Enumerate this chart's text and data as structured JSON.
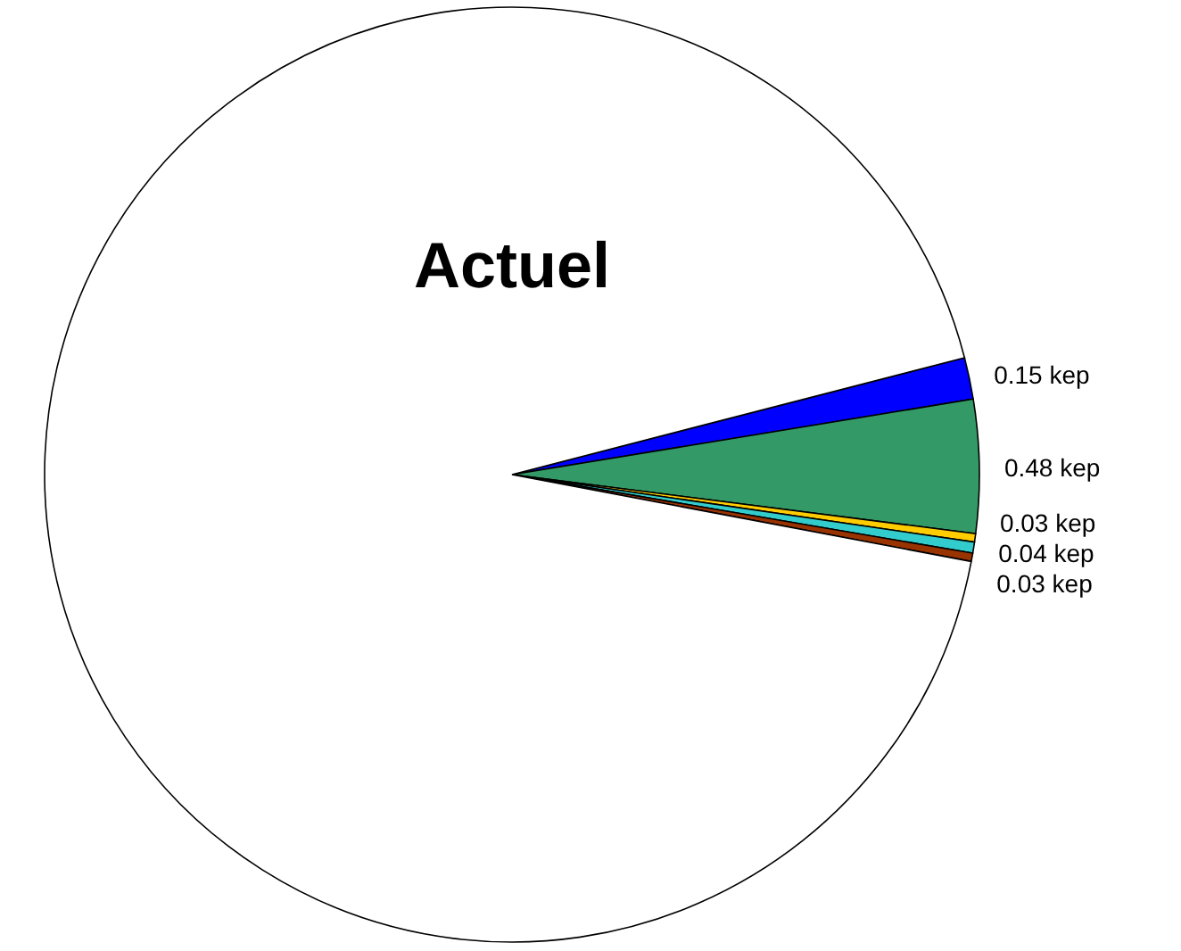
{
  "chart_data": {
    "type": "pie",
    "title": "Actuel",
    "categories": [
      null,
      null,
      null,
      null,
      null,
      null
    ],
    "values": [
      0.15,
      0.48,
      0.03,
      0.04,
      0.03,
      9.7
    ],
    "colors": [
      "#0000ff",
      "#339966",
      "#ffcc00",
      "#33cccc",
      "#993300",
      "#ffffff"
    ],
    "value_labels": [
      "0.15 kep",
      "0.48 kep",
      "0.03 kep",
      "0.04 kep",
      "0.03 kep",
      null
    ]
  }
}
